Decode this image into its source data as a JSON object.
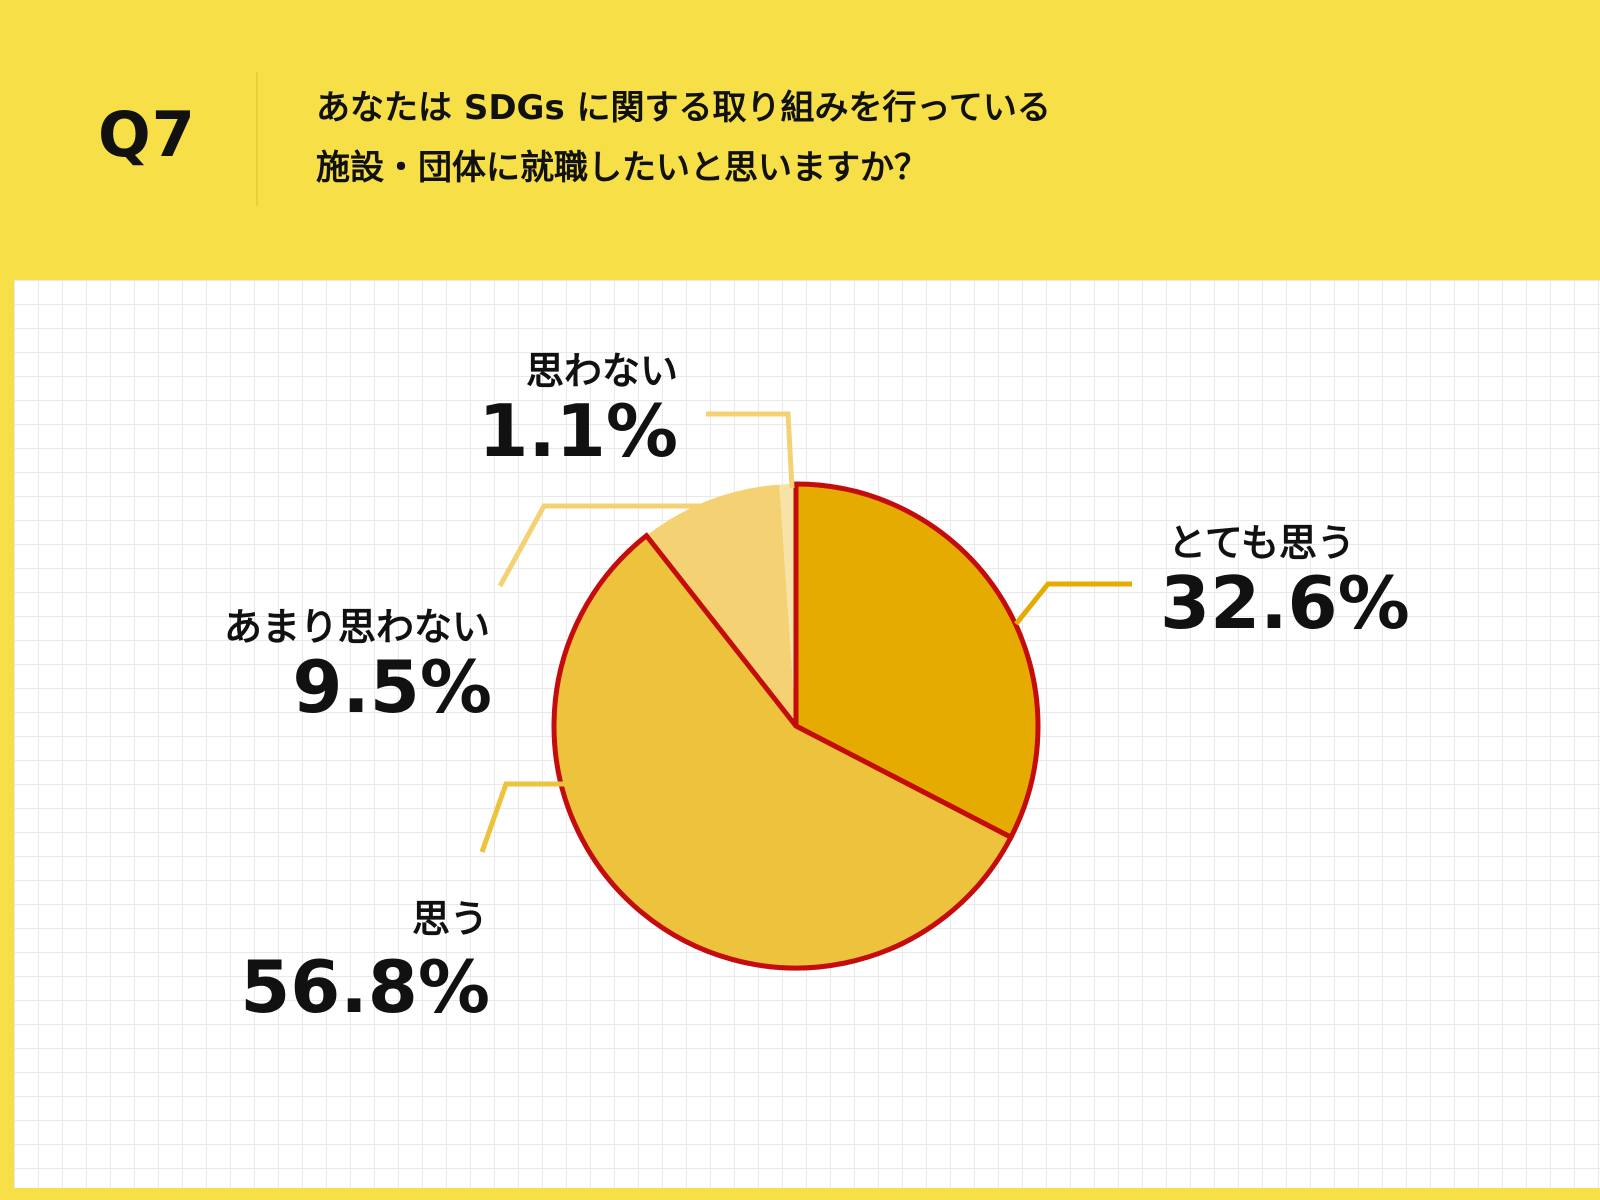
{
  "header": {
    "question_number": "Q7",
    "question_line1": "あなたは SDGs に関する取り組みを行っている",
    "question_line2": "施設・団体に就職したいと思いますか？"
  },
  "colors": {
    "background": "#f6df47",
    "panel": "#ffffff",
    "slice_outline": "#c40c0c"
  },
  "chart_data": {
    "type": "pie",
    "title": "",
    "start_angle_deg": 0,
    "direction": "clockwise",
    "slices": [
      {
        "label": "とても思う",
        "value": 32.6,
        "value_label": "32.6%",
        "color": "#e5ab00",
        "outlined": true,
        "leader_color": "#e5ab00"
      },
      {
        "label": "思う",
        "value": 56.8,
        "value_label": "56.8%",
        "color": "#edc23c",
        "outlined": true,
        "leader_color": "#edc23c"
      },
      {
        "label": "あまり思わない",
        "value": 9.5,
        "value_label": "9.5%",
        "color": "#f4d274",
        "outlined": false,
        "leader_color": "#f4d274"
      },
      {
        "label": "思わない",
        "value": 1.1,
        "value_label": "1.1%",
        "color": "#f8e3a6",
        "outlined": false,
        "leader_color": "#f4d274"
      }
    ]
  }
}
